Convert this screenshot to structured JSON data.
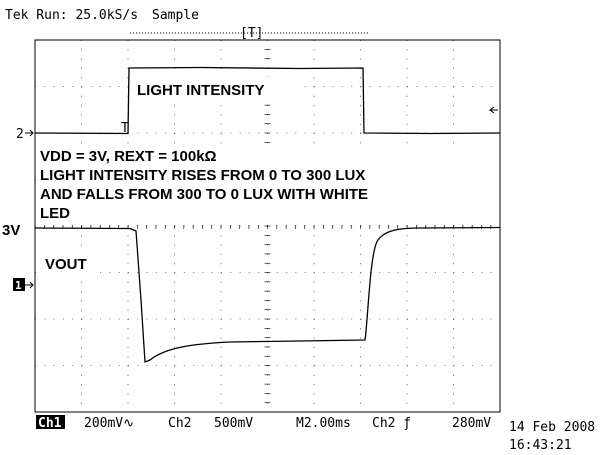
{
  "header": {
    "status": "Tek Run: 25.0kS/s",
    "mode": "Sample",
    "trigger": "[T]"
  },
  "annotations": {
    "trace2": "LIGHT INTENSITY",
    "conditions": [
      "VDD = 3V, REXT = 100kΩ",
      "LIGHT INTENSITY RISES FROM 0 TO 300 LUX",
      "AND FALLS FROM 300 TO 0 LUX WITH WHITE",
      "LED"
    ],
    "level": "3V",
    "trace1": "VOUT"
  },
  "markers": {
    "ch2": "2",
    "ch1": "1",
    "trigger_point": "T"
  },
  "footer": {
    "ch1": "Ch1",
    "ch1_scale": "200mV∿",
    "ch2": "Ch2",
    "ch2_scale": "500mV",
    "timebase": "M2.00ms",
    "trigger_source": "Ch2 ƒ",
    "trigger_level": "280mV",
    "date": "14 Feb 2008",
    "time": "16:43:21"
  }
}
